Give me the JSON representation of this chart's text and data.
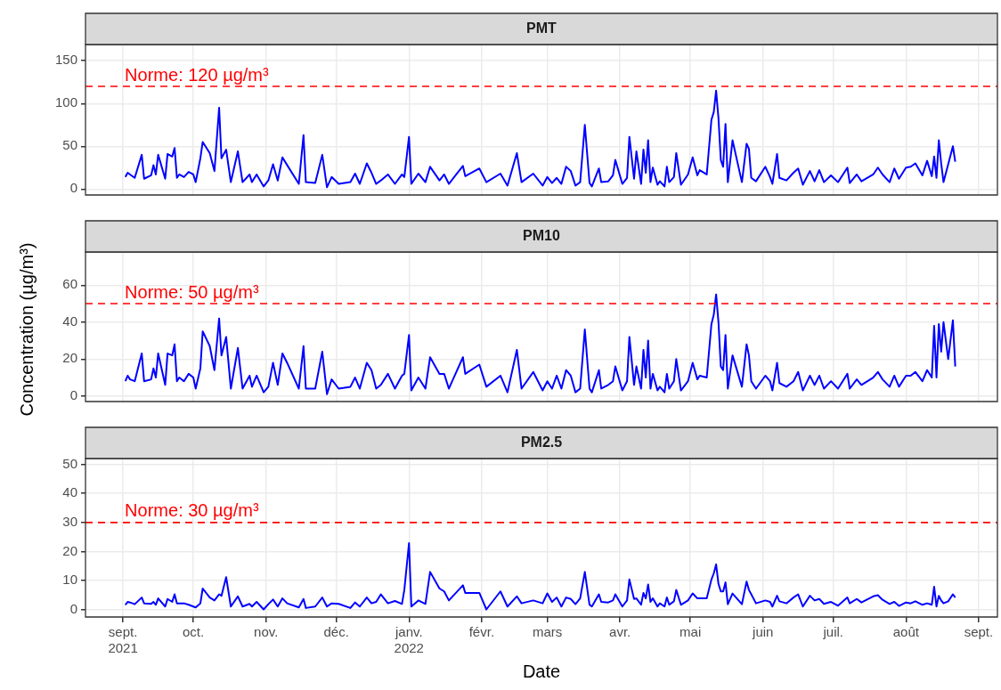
{
  "chart_data": [
    {
      "type": "line",
      "title": "PMT",
      "color": "#0000ff",
      "grid": true,
      "tick_labels": "y",
      "xlim": [
        "2021-08-16",
        "2022-09-09"
      ],
      "ylim": [
        -7,
        169
      ],
      "yticks": [
        0,
        50,
        100,
        150
      ],
      "xticks": [
        {
          "value": "2021-09-01",
          "label": null
        },
        {
          "value": "2021-10-01",
          "label": null
        },
        {
          "value": "2021-11-01",
          "label": null
        },
        {
          "value": "2021-12-01",
          "label": null
        },
        {
          "value": "2022-01-01",
          "label": null
        },
        {
          "value": "2022-02-01",
          "label": null
        },
        {
          "value": "2022-03-01",
          "label": null
        },
        {
          "value": "2022-04-01",
          "label": null
        },
        {
          "value": "2022-05-01",
          "label": null
        },
        {
          "value": "2022-06-01",
          "label": null
        },
        {
          "value": "2022-07-01",
          "label": null
        },
        {
          "value": "2022-08-01",
          "label": null
        },
        {
          "value": "2022-09-01",
          "label": null
        }
      ],
      "ref_lines": [
        {
          "axis": "y",
          "value": 120,
          "label": "Norme: 120 µg/m³",
          "color": "#ff0000",
          "line_style": "dashed"
        }
      ],
      "x": [
        "2021-09-02",
        "2021-09-03",
        "2021-09-04",
        "2021-09-06",
        "2021-09-09",
        "2021-09-10",
        "2021-09-13",
        "2021-09-14",
        "2021-09-15",
        "2021-09-16",
        "2021-09-19",
        "2021-09-20",
        "2021-09-22",
        "2021-09-23",
        "2021-09-24",
        "2021-09-25",
        "2021-09-27",
        "2021-09-29",
        "2021-10-01",
        "2021-10-02",
        "2021-10-04",
        "2021-10-05",
        "2021-10-08",
        "2021-10-10",
        "2021-10-12",
        "2021-10-13",
        "2021-10-15",
        "2021-10-17",
        "2021-10-20",
        "2021-10-22",
        "2021-10-25",
        "2021-10-26",
        "2021-10-28",
        "2021-10-31",
        "2021-11-02",
        "2021-11-04",
        "2021-11-06",
        "2021-11-08",
        "2021-11-10",
        "2021-11-15",
        "2021-11-17",
        "2021-11-18",
        "2021-11-22",
        "2021-11-25",
        "2021-11-27",
        "2021-11-29",
        "2021-12-02",
        "2021-12-07",
        "2021-12-09",
        "2021-12-11",
        "2021-12-14",
        "2021-12-16",
        "2021-12-18",
        "2021-12-20",
        "2021-12-23",
        "2021-12-26",
        "2021-12-29",
        "2021-12-30",
        "2022-01-01",
        "2022-01-02",
        "2022-01-05",
        "2022-01-08",
        "2022-01-10",
        "2022-01-14",
        "2022-01-16",
        "2022-01-18",
        "2022-01-24",
        "2022-01-25",
        "2022-01-31",
        "2022-02-03",
        "2022-02-09",
        "2022-02-12",
        "2022-02-16",
        "2022-02-18",
        "2022-02-23",
        "2022-02-27",
        "2022-03-01",
        "2022-03-03",
        "2022-03-05",
        "2022-03-07",
        "2022-03-09",
        "2022-03-11",
        "2022-03-13",
        "2022-03-15",
        "2022-03-17",
        "2022-03-19",
        "2022-03-20",
        "2022-03-23",
        "2022-03-24",
        "2022-03-27",
        "2022-03-29",
        "2022-03-30",
        "2022-04-02",
        "2022-04-04",
        "2022-04-05",
        "2022-04-07",
        "2022-04-08",
        "2022-04-10",
        "2022-04-11",
        "2022-04-12",
        "2022-04-13",
        "2022-04-14",
        "2022-04-15",
        "2022-04-17",
        "2022-04-18",
        "2022-04-20",
        "2022-04-21",
        "2022-04-22",
        "2022-04-24",
        "2022-04-25",
        "2022-04-27",
        "2022-04-30",
        "2022-05-02",
        "2022-05-04",
        "2022-05-05",
        "2022-05-08",
        "2022-05-10",
        "2022-05-11",
        "2022-05-12",
        "2022-05-13",
        "2022-05-14",
        "2022-05-15",
        "2022-05-16",
        "2022-05-17",
        "2022-05-19",
        "2022-05-23",
        "2022-05-25",
        "2022-05-26",
        "2022-05-27",
        "2022-05-29",
        "2022-06-02",
        "2022-06-04",
        "2022-06-05",
        "2022-06-07",
        "2022-06-08",
        "2022-06-11",
        "2022-06-14",
        "2022-06-16",
        "2022-06-18",
        "2022-06-21",
        "2022-06-23",
        "2022-06-25",
        "2022-06-27",
        "2022-06-30",
        "2022-07-03",
        "2022-07-07",
        "2022-07-08",
        "2022-07-11",
        "2022-07-13",
        "2022-07-18",
        "2022-07-20",
        "2022-07-22",
        "2022-07-25",
        "2022-07-27",
        "2022-07-29",
        "2022-08-01",
        "2022-08-03",
        "2022-08-05",
        "2022-08-08",
        "2022-08-10",
        "2022-08-12",
        "2022-08-13",
        "2022-08-14",
        "2022-08-15",
        "2022-08-16",
        "2022-08-17",
        "2022-08-19",
        "2022-08-21",
        "2022-08-22"
      ],
      "values": [
        14,
        19,
        17,
        13,
        40,
        12,
        16,
        28,
        17,
        40,
        12,
        41,
        38,
        48,
        13,
        17,
        14,
        20,
        17,
        8,
        36,
        55,
        42,
        21,
        95,
        36,
        46,
        8,
        44,
        8,
        17,
        8,
        17,
        3,
        10,
        29,
        10,
        37,
        28,
        6,
        63,
        8,
        7,
        40,
        2,
        14,
        6,
        8,
        18,
        6,
        30,
        19,
        6,
        10,
        17,
        6,
        17,
        14,
        61,
        6,
        18,
        8,
        26,
        10,
        17,
        6,
        27,
        15,
        24,
        8,
        18,
        4,
        42,
        8,
        18,
        4,
        14,
        7,
        13,
        6,
        26,
        21,
        4,
        8,
        75,
        7,
        3,
        24,
        8,
        9,
        16,
        34,
        6,
        13,
        61,
        12,
        44,
        6,
        46,
        19,
        57,
        8,
        25,
        5,
        9,
        3,
        26,
        8,
        14,
        42,
        5,
        17,
        37,
        16,
        22,
        17,
        81,
        90,
        115,
        83,
        34,
        26,
        76,
        8,
        57,
        8,
        53,
        47,
        13,
        9,
        26,
        14,
        6,
        41,
        13,
        10,
        19,
        24,
        5,
        21,
        9,
        22,
        8,
        16,
        8,
        25,
        7,
        17,
        9,
        17,
        25,
        17,
        8,
        24,
        12,
        25,
        26,
        30,
        16,
        33,
        15,
        38,
        13,
        57,
        30,
        8,
        29,
        50,
        32
      ]
    },
    {
      "type": "line",
      "title": "PM10",
      "ylabel": "Concentration (µg/m³)",
      "color": "#0000ff",
      "grid": true,
      "tick_labels": "y",
      "xlim": [
        "2021-08-16",
        "2022-09-09"
      ],
      "ylim": [
        -3,
        78
      ],
      "yticks": [
        0,
        20,
        40,
        60
      ],
      "xticks": [
        {
          "value": "2021-09-01",
          "label": null
        },
        {
          "value": "2021-10-01",
          "label": null
        },
        {
          "value": "2021-11-01",
          "label": null
        },
        {
          "value": "2021-12-01",
          "label": null
        },
        {
          "value": "2022-01-01",
          "label": null
        },
        {
          "value": "2022-02-01",
          "label": null
        },
        {
          "value": "2022-03-01",
          "label": null
        },
        {
          "value": "2022-04-01",
          "label": null
        },
        {
          "value": "2022-05-01",
          "label": null
        },
        {
          "value": "2022-06-01",
          "label": null
        },
        {
          "value": "2022-07-01",
          "label": null
        },
        {
          "value": "2022-08-01",
          "label": null
        },
        {
          "value": "2022-09-01",
          "label": null
        }
      ],
      "ref_lines": [
        {
          "axis": "y",
          "value": 50,
          "label": "Norme: 50 µg/m³",
          "color": "#ff0000",
          "line_style": "dashed"
        }
      ],
      "x": [
        "2021-09-02",
        "2021-09-03",
        "2021-09-04",
        "2021-09-06",
        "2021-09-09",
        "2021-09-10",
        "2021-09-13",
        "2021-09-14",
        "2021-09-15",
        "2021-09-16",
        "2021-09-19",
        "2021-09-20",
        "2021-09-22",
        "2021-09-23",
        "2021-09-24",
        "2021-09-25",
        "2021-09-27",
        "2021-09-29",
        "2021-10-01",
        "2021-10-02",
        "2021-10-04",
        "2021-10-05",
        "2021-10-08",
        "2021-10-10",
        "2021-10-12",
        "2021-10-13",
        "2021-10-15",
        "2021-10-17",
        "2021-10-20",
        "2021-10-22",
        "2021-10-25",
        "2021-10-26",
        "2021-10-28",
        "2021-10-31",
        "2021-11-02",
        "2021-11-04",
        "2021-11-06",
        "2021-11-08",
        "2021-11-10",
        "2021-11-15",
        "2021-11-17",
        "2021-11-18",
        "2021-11-22",
        "2021-11-25",
        "2021-11-27",
        "2021-11-29",
        "2021-12-02",
        "2021-12-07",
        "2021-12-09",
        "2021-12-11",
        "2021-12-14",
        "2021-12-16",
        "2021-12-18",
        "2021-12-20",
        "2021-12-23",
        "2021-12-26",
        "2021-12-29",
        "2021-12-30",
        "2022-01-01",
        "2022-01-02",
        "2022-01-05",
        "2022-01-08",
        "2022-01-10",
        "2022-01-14",
        "2022-01-16",
        "2022-01-18",
        "2022-01-24",
        "2022-01-25",
        "2022-01-31",
        "2022-02-03",
        "2022-02-09",
        "2022-02-12",
        "2022-02-16",
        "2022-02-18",
        "2022-02-23",
        "2022-02-27",
        "2022-03-01",
        "2022-03-03",
        "2022-03-05",
        "2022-03-07",
        "2022-03-09",
        "2022-03-11",
        "2022-03-13",
        "2022-03-15",
        "2022-03-17",
        "2022-03-19",
        "2022-03-20",
        "2022-03-23",
        "2022-03-24",
        "2022-03-27",
        "2022-03-29",
        "2022-03-30",
        "2022-04-02",
        "2022-04-04",
        "2022-04-05",
        "2022-04-07",
        "2022-04-08",
        "2022-04-10",
        "2022-04-11",
        "2022-04-12",
        "2022-04-13",
        "2022-04-14",
        "2022-04-15",
        "2022-04-17",
        "2022-04-18",
        "2022-04-20",
        "2022-04-21",
        "2022-04-22",
        "2022-04-24",
        "2022-04-25",
        "2022-04-27",
        "2022-04-30",
        "2022-05-02",
        "2022-05-04",
        "2022-05-05",
        "2022-05-08",
        "2022-05-10",
        "2022-05-11",
        "2022-05-12",
        "2022-05-13",
        "2022-05-14",
        "2022-05-15",
        "2022-05-16",
        "2022-05-17",
        "2022-05-19",
        "2022-05-23",
        "2022-05-25",
        "2022-05-26",
        "2022-05-27",
        "2022-05-29",
        "2022-06-02",
        "2022-06-04",
        "2022-06-05",
        "2022-06-07",
        "2022-06-08",
        "2022-06-11",
        "2022-06-14",
        "2022-06-16",
        "2022-06-18",
        "2022-06-21",
        "2022-06-23",
        "2022-06-25",
        "2022-06-27",
        "2022-06-30",
        "2022-07-03",
        "2022-07-07",
        "2022-07-08",
        "2022-07-11",
        "2022-07-13",
        "2022-07-18",
        "2022-07-20",
        "2022-07-22",
        "2022-07-25",
        "2022-07-27",
        "2022-07-29",
        "2022-08-01",
        "2022-08-03",
        "2022-08-05",
        "2022-08-08",
        "2022-08-10",
        "2022-08-12",
        "2022-08-13",
        "2022-08-14",
        "2022-08-15",
        "2022-08-16",
        "2022-08-17",
        "2022-08-19",
        "2022-08-21",
        "2022-08-22"
      ],
      "values": [
        8,
        11,
        9,
        8,
        23,
        8,
        9,
        15,
        10,
        23,
        6,
        23,
        22,
        28,
        8,
        10,
        8,
        12,
        10,
        4,
        15,
        35,
        27,
        14,
        42,
        22,
        32,
        4,
        26,
        4,
        11,
        5,
        11,
        2,
        5,
        18,
        6,
        23,
        18,
        4,
        27,
        4,
        4,
        24,
        1,
        9,
        4,
        5,
        10,
        4,
        18,
        14,
        4,
        6,
        12,
        4,
        11,
        12,
        33,
        3,
        10,
        4,
        21,
        12,
        12,
        4,
        21,
        12,
        17,
        5,
        11,
        2,
        25,
        4,
        13,
        3,
        8,
        4,
        11,
        4,
        14,
        11,
        2,
        4,
        36,
        4,
        2,
        14,
        4,
        6,
        8,
        16,
        3,
        8,
        32,
        6,
        16,
        4,
        25,
        10,
        30,
        4,
        12,
        3,
        5,
        2,
        12,
        4,
        8,
        20,
        3,
        8,
        18,
        9,
        11,
        10,
        39,
        44,
        55,
        40,
        16,
        14,
        33,
        4,
        22,
        5,
        28,
        22,
        8,
        4,
        11,
        8,
        3,
        18,
        7,
        5,
        8,
        13,
        3,
        11,
        6,
        11,
        4,
        8,
        4,
        12,
        4,
        9,
        6,
        10,
        13,
        9,
        5,
        11,
        5,
        11,
        11,
        13,
        8,
        14,
        10,
        38,
        10,
        39,
        24,
        40,
        20,
        41,
        16
      ]
    },
    {
      "type": "line",
      "title": "PM2.5",
      "xlabel": "Date",
      "color": "#0000ff",
      "grid": true,
      "xlim": [
        "2021-08-16",
        "2022-09-09"
      ],
      "ylim": [
        -2.5,
        52
      ],
      "yticks": [
        0,
        10,
        20,
        30,
        40,
        50
      ],
      "xticks": [
        {
          "value": "2021-09-01",
          "label": "sept.\n2021"
        },
        {
          "value": "2021-10-01",
          "label": "oct."
        },
        {
          "value": "2021-11-01",
          "label": "nov."
        },
        {
          "value": "2021-12-01",
          "label": "déc."
        },
        {
          "value": "2022-01-01",
          "label": "janv.\n2022"
        },
        {
          "value": "2022-02-01",
          "label": "févr."
        },
        {
          "value": "2022-03-01",
          "label": "mars"
        },
        {
          "value": "2022-04-01",
          "label": "avr."
        },
        {
          "value": "2022-05-01",
          "label": "mai"
        },
        {
          "value": "2022-06-01",
          "label": "juin"
        },
        {
          "value": "2022-07-01",
          "label": "juil."
        },
        {
          "value": "2022-08-01",
          "label": "août"
        },
        {
          "value": "2022-09-01",
          "label": "sept."
        }
      ],
      "ref_lines": [
        {
          "axis": "y",
          "value": 30,
          "label": "Norme: 30 µg/m³",
          "color": "#ff0000",
          "line_style": "dashed"
        }
      ],
      "x": [
        "2021-09-02",
        "2021-09-03",
        "2021-09-04",
        "2021-09-06",
        "2021-09-09",
        "2021-09-10",
        "2021-09-13",
        "2021-09-14",
        "2021-09-15",
        "2021-09-16",
        "2021-09-19",
        "2021-09-20",
        "2021-09-22",
        "2021-09-23",
        "2021-09-24",
        "2021-09-25",
        "2021-09-27",
        "2021-09-29",
        "2021-10-01",
        "2021-10-02",
        "2021-10-04",
        "2021-10-05",
        "2021-10-08",
        "2021-10-10",
        "2021-10-12",
        "2021-10-13",
        "2021-10-15",
        "2021-10-17",
        "2021-10-20",
        "2021-10-22",
        "2021-10-25",
        "2021-10-26",
        "2021-10-28",
        "2021-10-31",
        "2021-11-02",
        "2021-11-04",
        "2021-11-06",
        "2021-11-08",
        "2021-11-10",
        "2021-11-15",
        "2021-11-17",
        "2021-11-18",
        "2021-11-22",
        "2021-11-25",
        "2021-11-27",
        "2021-11-29",
        "2021-12-02",
        "2021-12-07",
        "2021-12-09",
        "2021-12-11",
        "2021-12-14",
        "2021-12-16",
        "2021-12-18",
        "2021-12-20",
        "2021-12-23",
        "2021-12-26",
        "2021-12-29",
        "2021-12-30",
        "2022-01-01",
        "2022-01-02",
        "2022-01-05",
        "2022-01-08",
        "2022-01-10",
        "2022-01-14",
        "2022-01-16",
        "2022-01-18",
        "2022-01-24",
        "2022-01-25",
        "2022-01-31",
        "2022-02-03",
        "2022-02-09",
        "2022-02-12",
        "2022-02-16",
        "2022-02-18",
        "2022-02-23",
        "2022-02-27",
        "2022-03-01",
        "2022-03-03",
        "2022-03-05",
        "2022-03-07",
        "2022-03-09",
        "2022-03-11",
        "2022-03-13",
        "2022-03-15",
        "2022-03-17",
        "2022-03-19",
        "2022-03-20",
        "2022-03-23",
        "2022-03-24",
        "2022-03-27",
        "2022-03-29",
        "2022-03-30",
        "2022-04-02",
        "2022-04-04",
        "2022-04-05",
        "2022-04-07",
        "2022-04-08",
        "2022-04-10",
        "2022-04-11",
        "2022-04-12",
        "2022-04-13",
        "2022-04-14",
        "2022-04-15",
        "2022-04-17",
        "2022-04-18",
        "2022-04-20",
        "2022-04-21",
        "2022-04-22",
        "2022-04-24",
        "2022-04-25",
        "2022-04-27",
        "2022-04-30",
        "2022-05-02",
        "2022-05-04",
        "2022-05-05",
        "2022-05-08",
        "2022-05-10",
        "2022-05-11",
        "2022-05-12",
        "2022-05-13",
        "2022-05-14",
        "2022-05-15",
        "2022-05-16",
        "2022-05-17",
        "2022-05-19",
        "2022-05-23",
        "2022-05-25",
        "2022-05-26",
        "2022-05-27",
        "2022-05-29",
        "2022-06-02",
        "2022-06-04",
        "2022-06-05",
        "2022-06-07",
        "2022-06-08",
        "2022-06-11",
        "2022-06-14",
        "2022-06-16",
        "2022-06-18",
        "2022-06-21",
        "2022-06-23",
        "2022-06-25",
        "2022-06-27",
        "2022-06-30",
        "2022-07-03",
        "2022-07-07",
        "2022-07-08",
        "2022-07-11",
        "2022-07-13",
        "2022-07-18",
        "2022-07-20",
        "2022-07-22",
        "2022-07-25",
        "2022-07-27",
        "2022-07-29",
        "2022-08-01",
        "2022-08-03",
        "2022-08-05",
        "2022-08-08",
        "2022-08-10",
        "2022-08-12",
        "2022-08-13",
        "2022-08-14",
        "2022-08-15",
        "2022-08-16",
        "2022-08-17",
        "2022-08-19",
        "2022-08-21",
        "2022-08-22"
      ],
      "values": [
        1.7,
        2.7,
        2.5,
        1.9,
        4.2,
        2.2,
        2.0,
        2.7,
        1.7,
        3.9,
        1.1,
        3.7,
        2.7,
        5.3,
        2.2,
        2.2,
        2.2,
        1.7,
        1.1,
        0.8,
        2.2,
        7.3,
        4.2,
        3.2,
        5.3,
        4.8,
        11.2,
        1.1,
        4.6,
        1.1,
        2.0,
        1.1,
        2.7,
        0.1,
        1.9,
        3.5,
        1.1,
        3.9,
        2.2,
        0.8,
        3.7,
        0.6,
        1.1,
        4.2,
        1.1,
        2.2,
        2.0,
        0.6,
        2.5,
        1.1,
        4.2,
        2.2,
        2.7,
        5.3,
        2.2,
        3.0,
        2.0,
        6.8,
        22.9,
        1.1,
        3.2,
        2.0,
        13.0,
        7.3,
        6.3,
        3.2,
        8.4,
        5.8,
        5.8,
        0.1,
        6.3,
        1.1,
        4.6,
        2.2,
        3.2,
        2.2,
        5.6,
        2.7,
        4.2,
        1.1,
        4.2,
        3.7,
        1.9,
        3.9,
        13.0,
        1.7,
        1.1,
        5.3,
        2.7,
        2.5,
        3.2,
        5.3,
        1.1,
        3.2,
        10.4,
        3.7,
        3.9,
        1.7,
        5.8,
        3.9,
        8.7,
        2.7,
        3.9,
        1.1,
        2.2,
        1.1,
        4.2,
        1.7,
        2.9,
        6.8,
        1.7,
        3.2,
        5.6,
        3.9,
        3.9,
        3.9,
        10.4,
        12.5,
        15.6,
        8.9,
        6.3,
        6.3,
        9.4,
        1.9,
        5.6,
        1.9,
        9.7,
        6.8,
        5.3,
        2.2,
        3.2,
        2.7,
        1.1,
        4.8,
        2.9,
        2.2,
        4.2,
        5.3,
        1.1,
        4.8,
        3.2,
        3.7,
        2.0,
        2.7,
        1.4,
        4.2,
        2.2,
        3.7,
        2.5,
        4.6,
        5.0,
        3.4,
        2.0,
        2.7,
        1.3,
        2.5,
        2.2,
        2.9,
        1.7,
        2.2,
        1.7,
        7.9,
        1.1,
        4.8,
        3.2,
        2.2,
        2.9,
        5.3,
        4.2
      ]
    }
  ]
}
